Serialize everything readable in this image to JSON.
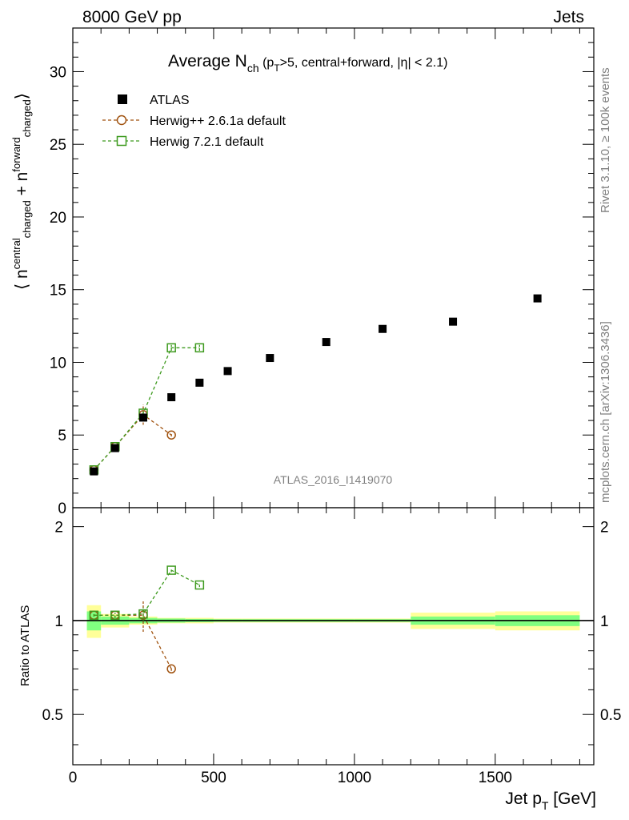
{
  "header": {
    "left": "8000 GeV pp",
    "right": "Jets"
  },
  "plot_title": {
    "main": "Average N",
    "main_sub": "ch",
    "paren_open": " (p",
    "pt_sub": "T",
    "rest": ">5, central+forward, |η| < 2.1)"
  },
  "side_texts": {
    "rivet": "Rivet 3.1.10, ≥ 100k events",
    "mcplots": "mcplots.cern.ch [arXiv:1306.3436]"
  },
  "watermark": "ATLAS_2016_I1419070",
  "ylabel_main": {
    "open": "⟨ n",
    "s1": "central",
    "s1_sub": "charged",
    "plus": " + n",
    "s2": "forward",
    "s2_sub": "charged",
    "close": "⟩"
  },
  "ylabel_ratio": "Ratio to ATLAS",
  "xlabel": {
    "main": "Jet p",
    "sub": "T",
    "unit": " [GeV]"
  },
  "legend": [
    {
      "label": "ATLAS",
      "marker": "filled-square",
      "color": "#000000"
    },
    {
      "label": "Herwig++ 2.6.1a default",
      "marker": "open-circle",
      "color": "#a0520f"
    },
    {
      "label": "Herwig 7.2.1 default",
      "marker": "open-square",
      "color": "#3d9a1e"
    }
  ],
  "colors": {
    "band_inner": "#80ff80",
    "band_outer": "#ffff99"
  },
  "chart_data": [
    {
      "type": "scatter",
      "panel": "main",
      "xlim": [
        0,
        1850
      ],
      "ylim": [
        0,
        33
      ],
      "x_ticks": [
        0,
        500,
        1000,
        1500
      ],
      "y_ticks": [
        0,
        5,
        10,
        15,
        20,
        25,
        30
      ],
      "series": [
        {
          "name": "ATLAS",
          "x": [
            75,
            150,
            250,
            350,
            450,
            550,
            700,
            900,
            1100,
            1350,
            1650
          ],
          "y": [
            2.5,
            4.1,
            6.2,
            7.6,
            8.6,
            9.4,
            10.3,
            11.4,
            12.3,
            12.8,
            14.4
          ]
        },
        {
          "name": "Herwig++ 2.6.1a default",
          "x": [
            75,
            150,
            250,
            350
          ],
          "y": [
            2.6,
            4.2,
            6.4,
            5.0
          ],
          "yerr": [
            0.1,
            0.15,
            0.7,
            0.1
          ]
        },
        {
          "name": "Herwig 7.2.1 default",
          "x": [
            75,
            150,
            250,
            350,
            450
          ],
          "y": [
            2.6,
            4.2,
            6.5,
            11.0,
            11.0
          ],
          "yerr": [
            0.1,
            0.15,
            0.3,
            0.2,
            0.2
          ]
        }
      ]
    },
    {
      "type": "scatter",
      "panel": "ratio",
      "log_y": true,
      "xlim": [
        0,
        1850
      ],
      "ylim": [
        0.345,
        2.3
      ],
      "y_ticks": [
        0.5,
        1,
        2
      ],
      "bands": {
        "x_edges": [
          50,
          100,
          200,
          300,
          400,
          500,
          600,
          800,
          1000,
          1200,
          1500,
          1800
        ],
        "inner": [
          0.07,
          0.03,
          0.02,
          0.015,
          0.012,
          0.01,
          0.01,
          0.01,
          0.01,
          0.03,
          0.04
        ],
        "outer": [
          0.12,
          0.05,
          0.03,
          0.02,
          0.02,
          0.015,
          0.015,
          0.015,
          0.015,
          0.06,
          0.07
        ]
      },
      "series": [
        {
          "name": "Herwig++ 2.6.1a default",
          "x": [
            75,
            150,
            250,
            350
          ],
          "y": [
            1.04,
            1.04,
            1.04,
            0.7
          ],
          "yerr": [
            0.01,
            0.02,
            0.12,
            0.01
          ]
        },
        {
          "name": "Herwig 7.2.1 default",
          "x": [
            75,
            150,
            250,
            350,
            450
          ],
          "y": [
            1.04,
            1.04,
            1.05,
            1.45,
            1.3
          ],
          "yerr": [
            0.01,
            0.02,
            0.05,
            0.02,
            0.02
          ]
        }
      ]
    }
  ]
}
